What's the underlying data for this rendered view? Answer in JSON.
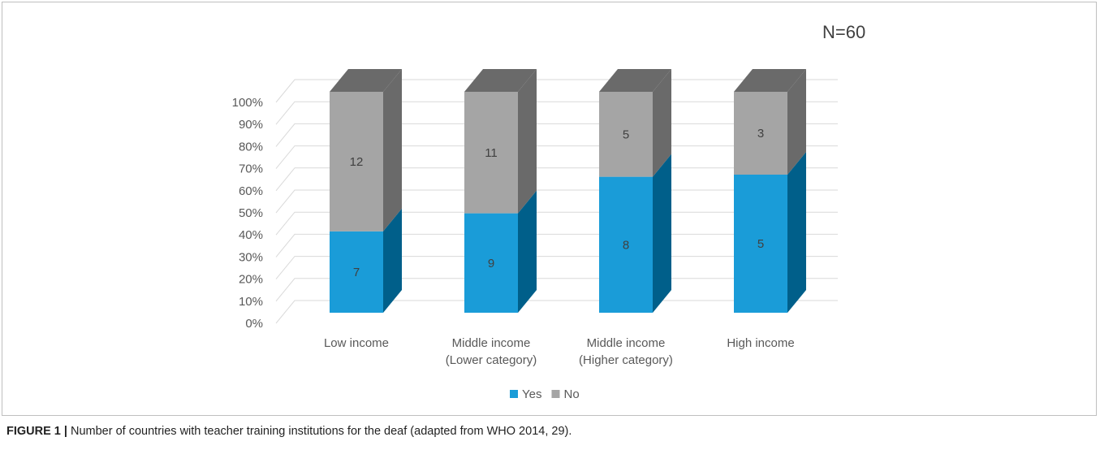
{
  "chart_data": {
    "type": "bar",
    "stacked": true,
    "percent": true,
    "three_d": true,
    "annotation": "N=60",
    "categories": [
      [
        "Low income"
      ],
      [
        "Middle income",
        "(Lower category)"
      ],
      [
        "Middle income",
        "(Higher category)"
      ],
      [
        "High income"
      ]
    ],
    "series": [
      {
        "name": "Yes",
        "values": [
          7,
          9,
          8,
          5
        ],
        "color": "#1a9cd8",
        "side_color": "#005f8a"
      },
      {
        "name": "No",
        "values": [
          12,
          11,
          5,
          3
        ],
        "color": "#a5a5a5",
        "side_color": "#6a6a6a"
      }
    ],
    "y_ticks": [
      "0%",
      "10%",
      "20%",
      "30%",
      "40%",
      "50%",
      "60%",
      "70%",
      "80%",
      "90%",
      "100%"
    ],
    "ylim": [
      0,
      100
    ],
    "legend_position": "bottom",
    "grid": true
  },
  "caption": {
    "label": "FIGURE 1 |",
    "text": " Number of countries with teacher training institutions for the deaf (adapted from WHO 2014, 29)."
  }
}
